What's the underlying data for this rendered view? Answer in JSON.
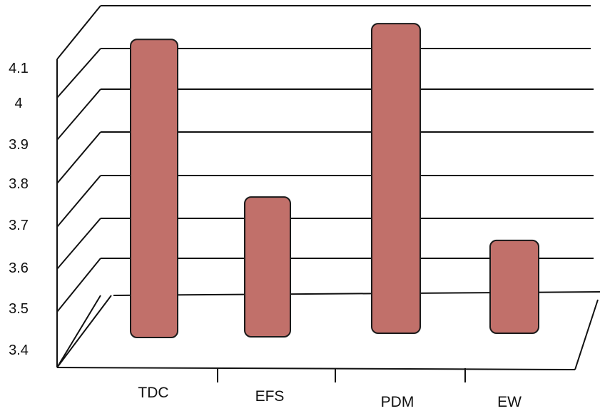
{
  "colors": {
    "bar_fill": "#c1706a",
    "bar_stroke": "#1a1a1a",
    "line": "#111111",
    "background": "#ffffff"
  },
  "chart_data": {
    "type": "bar",
    "title": "",
    "xlabel": "",
    "ylabel": "",
    "categories": [
      "TDC",
      "EFS",
      "PDM",
      "EW"
    ],
    "values": [
      4.2,
      3.8,
      4.24,
      3.69
    ],
    "y_tick_labels": [
      "3.4",
      "3.5",
      "3.6",
      "3.7",
      "3.8",
      "3.9",
      "4",
      "4.1"
    ],
    "ylim": [
      3.4,
      4.3
    ],
    "grid": true,
    "legend": "none",
    "style": "3d"
  }
}
